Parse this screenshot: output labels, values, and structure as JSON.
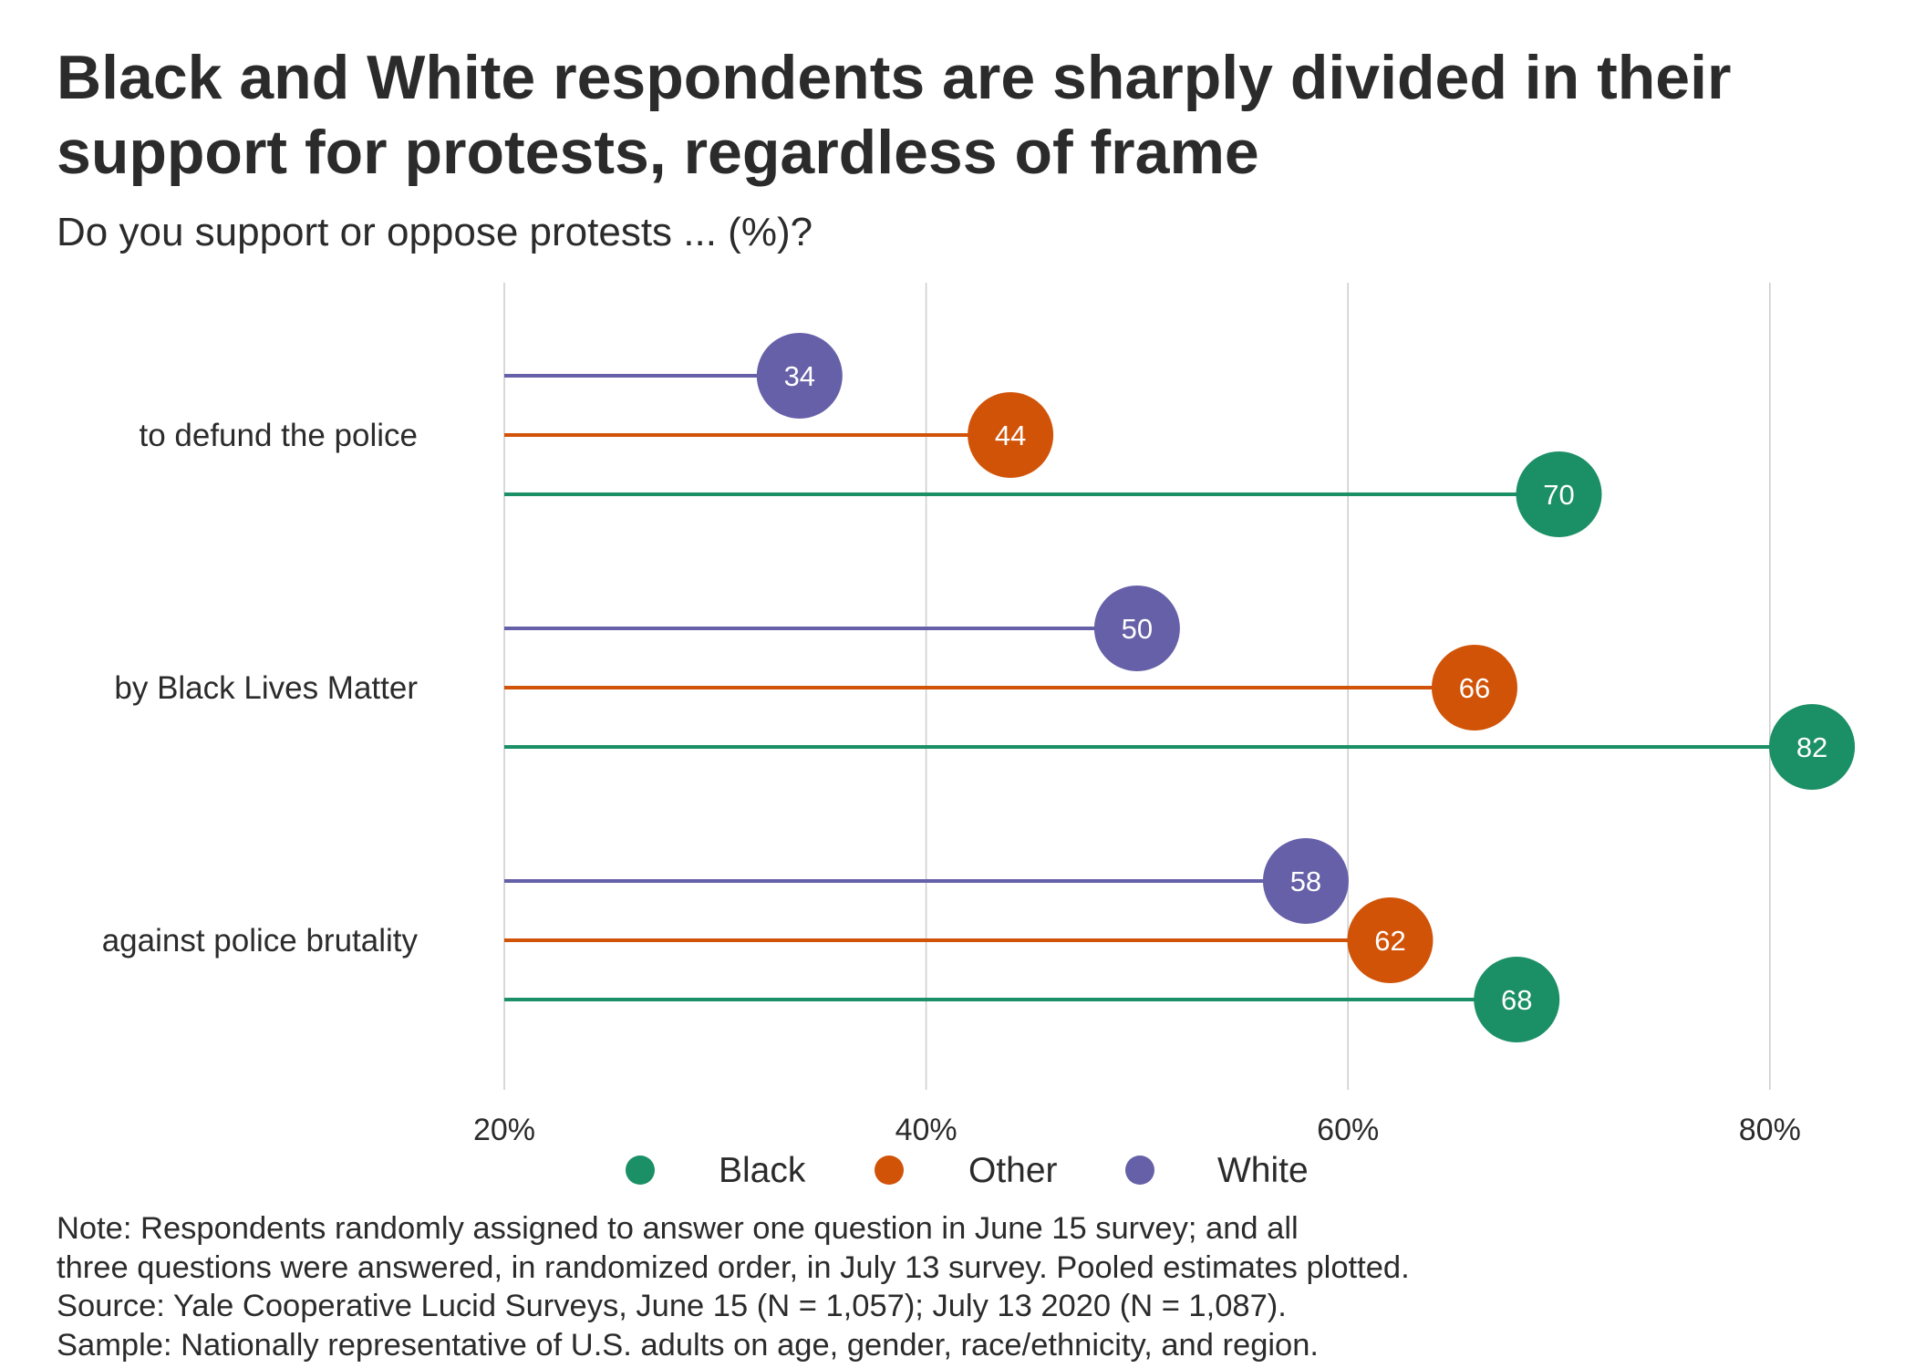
{
  "title": "Black and White respondents are sharply divided in their support for protests, regardless of frame",
  "subtitle": "Do you support or oppose protests ... (%)?",
  "colors": {
    "Black": "#1b8f66",
    "Other": "#d15308",
    "White": "#6660a8",
    "grid": "#cccccc",
    "text": "#2b2b2b"
  },
  "chart_data": {
    "type": "lollipop",
    "categories": [
      "to defund the police",
      "by Black Lives Matter",
      "against police brutality"
    ],
    "series": [
      {
        "name": "White",
        "values": [
          34,
          50,
          58
        ],
        "labels": [
          "34",
          "50",
          "58"
        ]
      },
      {
        "name": "Other",
        "values": [
          44,
          66,
          62
        ],
        "labels": [
          "44",
          "66",
          "62"
        ]
      },
      {
        "name": "Black",
        "values": [
          70,
          82,
          68
        ],
        "labels": [
          "70",
          "82",
          "68"
        ]
      }
    ],
    "x_ticks": [
      20,
      40,
      60,
      80
    ],
    "x_tick_labels": [
      "20%",
      "40%",
      "60%",
      "80%"
    ],
    "xlim": [
      20,
      84
    ],
    "legend": {
      "placement": "bottom",
      "order": [
        "Black",
        "Other",
        "White"
      ]
    }
  },
  "notes": [
    "Note: Respondents randomly assigned to answer one question in June 15 survey; and all",
    "three questions were answered, in randomized order, in July 13 survey. Pooled estimates plotted.",
    "Source: Yale Cooperative Lucid Surveys, June 15 (N = 1,057); July 13 2020 (N = 1,087).",
    "Sample: Nationally representative of U.S. adults on age, gender, race/ethnicity, and region."
  ]
}
